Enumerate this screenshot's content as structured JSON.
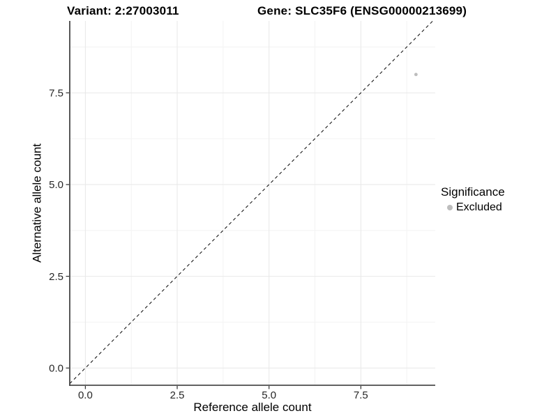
{
  "figure": {
    "title_left": "Variant: 2:27003011",
    "title_right": "Gene: SLC35F6 (ENSG00000213699)"
  },
  "axes": {
    "xlabel": "Reference allele count",
    "ylabel": "Alternative allele count"
  },
  "legend": {
    "title": "Significance",
    "items": [
      {
        "label": "Excluded",
        "color": "#bdbdbd"
      }
    ]
  },
  "chart_data": {
    "type": "scatter",
    "title": "Variant: 2:27003011 — Gene: SLC35F6 (ENSG00000213699)",
    "xlabel": "Reference allele count",
    "ylabel": "Alternative allele count",
    "x_ticks": [
      0.0,
      2.5,
      5.0,
      7.5
    ],
    "x_tick_labels": [
      "0.0",
      "2.5",
      "5.0",
      "7.5"
    ],
    "x_minor_ticks": [
      1.25,
      3.75,
      6.25,
      8.75
    ],
    "y_ticks": [
      0.0,
      2.5,
      5.0,
      7.5
    ],
    "y_tick_labels": [
      "0.0",
      "2.5",
      "5.0",
      "7.5"
    ],
    "y_minor_ticks": [
      1.25,
      3.75,
      6.25,
      8.75
    ],
    "xlim": [
      -0.425,
      9.525
    ],
    "ylim": [
      -0.47,
      9.46
    ],
    "grid": true,
    "legend_position": "right",
    "series": [
      {
        "name": "Excluded",
        "color": "#bdbdbd",
        "points": [
          {
            "x": 9,
            "y": 8
          }
        ]
      }
    ],
    "reference_line": {
      "slope": 1,
      "intercept": 0,
      "style": "dashed",
      "color": "#1a1a1a"
    },
    "style_colors": {
      "grid_major": "#e8e8e8",
      "grid_minor": "#f3f3f3",
      "axis_line": "#2f2f2f",
      "tick_text": "#262626",
      "background": "#ffffff"
    }
  }
}
